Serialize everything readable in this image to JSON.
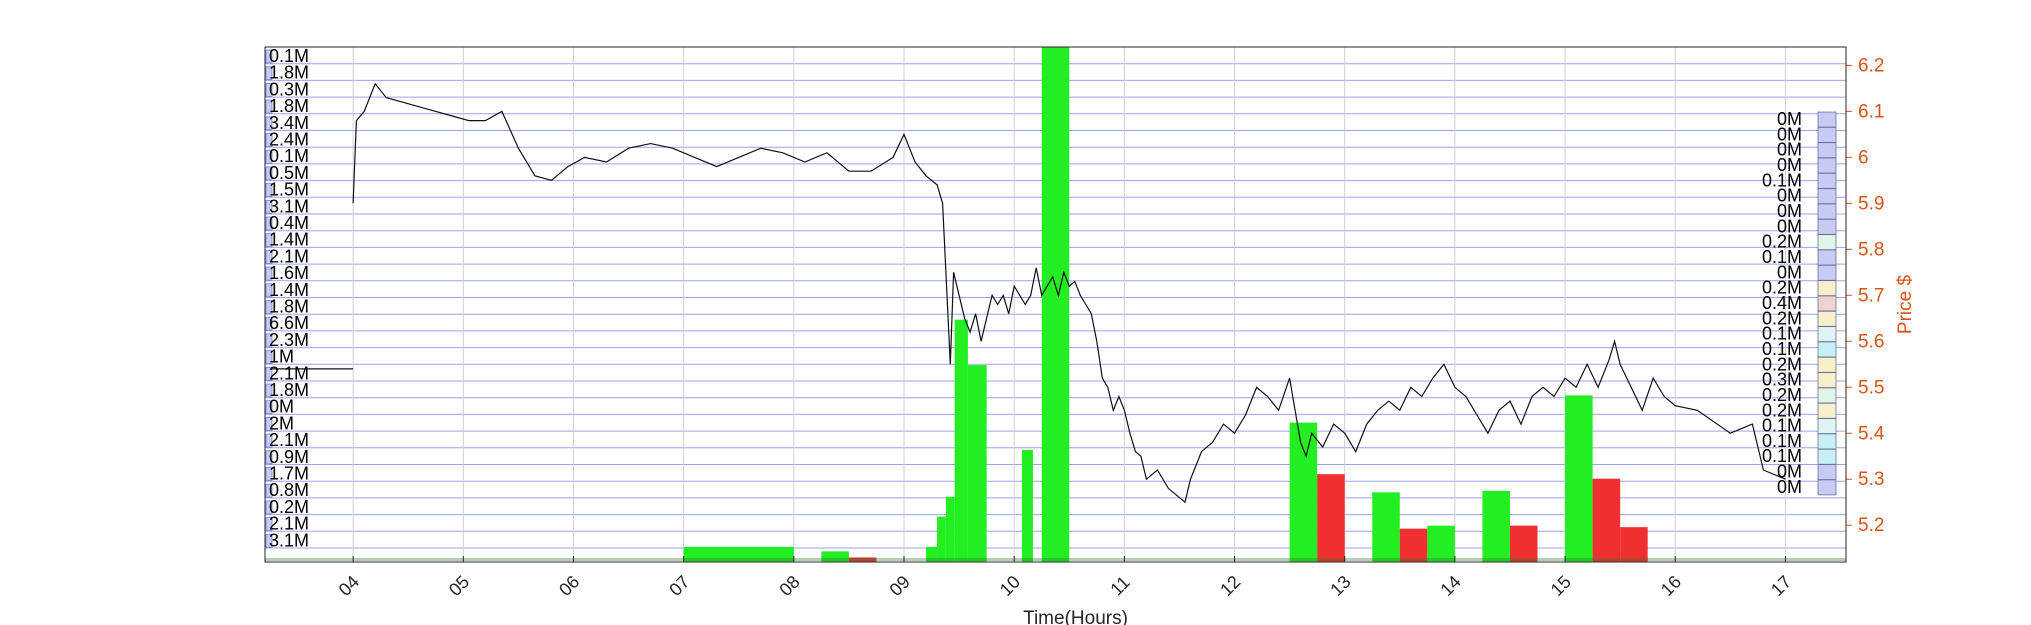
{
  "chart_data": {
    "type": "bar",
    "xlabel": "Time(Hours)",
    "ylabel_right": "Price $",
    "x_ticks": [
      "04",
      "05",
      "06",
      "07",
      "08",
      "09",
      "10",
      "11",
      "12",
      "13",
      "14",
      "15",
      "16",
      "17"
    ],
    "xlim": [
      3.2,
      17.55
    ],
    "ylim_price": [
      5.12,
      6.24
    ],
    "price_ticks": [
      5.2,
      5.3,
      5.4,
      5.5,
      5.6,
      5.7,
      5.8,
      5.9,
      6.0,
      6.1,
      6.2
    ],
    "grid": true,
    "left_volume_labels": [
      "0.1M",
      "1.8M",
      "0.3M",
      "1.8M",
      "3.4M",
      "2.4M",
      "0.1M",
      "0.5M",
      "1.5M",
      "3.1M",
      "0.4M",
      "1.4M",
      "2.1M",
      "1.6M",
      "1.4M",
      "1.8M",
      "6.6M",
      "2.3M",
      "1M",
      "2.1M",
      "1.8M",
      "0M",
      "2M",
      "2.1M",
      "0.9M",
      "1.7M",
      "0.8M",
      "0.2M",
      "2.1M",
      "3.1M"
    ],
    "right_volume_labels": [
      "0M",
      "0M",
      "0M",
      "0M",
      "0.1M",
      "0M",
      "0M",
      "0M",
      "0.2M",
      "0.1M",
      "0M",
      "0.2M",
      "0.4M",
      "0.2M",
      "0.1M",
      "0.1M",
      "0.2M",
      "0.3M",
      "0.2M",
      "0.2M",
      "0.1M",
      "0.1M",
      "0.1M",
      "0M",
      "0M"
    ],
    "volume_bars": [
      {
        "start": 7.0,
        "end": 8.0,
        "volume": 1.0,
        "color": "green"
      },
      {
        "start": 8.25,
        "end": 8.5,
        "volume": 0.7,
        "color": "green"
      },
      {
        "start": 8.5,
        "end": 8.75,
        "volume": 0.3,
        "color": "red"
      },
      {
        "start": 9.2,
        "end": 9.3,
        "volume": 1.0,
        "color": "green"
      },
      {
        "start": 9.3,
        "end": 9.38,
        "volume": 3.0,
        "color": "green"
      },
      {
        "start": 9.38,
        "end": 9.46,
        "volume": 4.3,
        "color": "green"
      },
      {
        "start": 9.46,
        "end": 9.58,
        "volume": 16.0,
        "color": "green"
      },
      {
        "start": 9.58,
        "end": 9.75,
        "volume": 13.0,
        "color": "green"
      },
      {
        "start": 10.07,
        "end": 10.17,
        "volume": 7.4,
        "color": "green"
      },
      {
        "start": 10.25,
        "end": 10.5,
        "volume": 34.0,
        "color": "green"
      },
      {
        "start": 12.5,
        "end": 12.75,
        "volume": 9.2,
        "color": "green"
      },
      {
        "start": 12.75,
        "end": 13.0,
        "volume": 5.8,
        "color": "red"
      },
      {
        "start": 13.25,
        "end": 13.5,
        "volume": 4.6,
        "color": "green"
      },
      {
        "start": 13.5,
        "end": 13.75,
        "volume": 2.2,
        "color": "red"
      },
      {
        "start": 13.75,
        "end": 14.0,
        "volume": 2.4,
        "color": "green"
      },
      {
        "start": 14.25,
        "end": 14.5,
        "volume": 4.7,
        "color": "green"
      },
      {
        "start": 14.5,
        "end": 14.75,
        "volume": 2.4,
        "color": "red"
      },
      {
        "start": 15.0,
        "end": 15.25,
        "volume": 11.0,
        "color": "green"
      },
      {
        "start": 15.25,
        "end": 15.5,
        "volume": 5.5,
        "color": "red"
      },
      {
        "start": 15.5,
        "end": 15.75,
        "volume": 2.3,
        "color": "red"
      }
    ],
    "volume_max": 34.0,
    "price_series": {
      "x": [
        4.0,
        4.03,
        4.1,
        4.2,
        4.3,
        4.45,
        4.6,
        4.75,
        4.9,
        5.05,
        5.2,
        5.35,
        5.5,
        5.6,
        5.65,
        5.8,
        5.95,
        6.1,
        6.3,
        6.5,
        6.7,
        6.9,
        7.1,
        7.3,
        7.5,
        7.7,
        7.9,
        8.1,
        8.3,
        8.5,
        8.7,
        8.9,
        9.0,
        9.1,
        9.2,
        9.3,
        9.35,
        9.38,
        9.42,
        9.45,
        9.5,
        9.55,
        9.6,
        9.65,
        9.7,
        9.75,
        9.8,
        9.85,
        9.9,
        9.95,
        10.0,
        10.05,
        10.1,
        10.15,
        10.2,
        10.25,
        10.3,
        10.35,
        10.4,
        10.45,
        10.5,
        10.55,
        10.6,
        10.65,
        10.7,
        10.75,
        10.8,
        10.85,
        10.9,
        10.95,
        11.0,
        11.05,
        11.1,
        11.15,
        11.2,
        11.3,
        11.4,
        11.5,
        11.55,
        11.6,
        11.7,
        11.8,
        11.9,
        12.0,
        12.1,
        12.2,
        12.3,
        12.4,
        12.5,
        12.55,
        12.6,
        12.65,
        12.7,
        12.8,
        12.9,
        13.0,
        13.1,
        13.2,
        13.3,
        13.4,
        13.5,
        13.6,
        13.7,
        13.8,
        13.9,
        14.0,
        14.1,
        14.2,
        14.3,
        14.4,
        14.5,
        14.6,
        14.7,
        14.8,
        14.9,
        15.0,
        15.1,
        15.2,
        15.3,
        15.4,
        15.45,
        15.5,
        15.6,
        15.7,
        15.8,
        15.9,
        16.0,
        16.2,
        16.5,
        16.7,
        16.8,
        17.0
      ],
      "y": [
        5.9,
        6.08,
        6.1,
        6.16,
        6.13,
        6.12,
        6.11,
        6.1,
        6.09,
        6.08,
        6.08,
        6.1,
        6.02,
        5.98,
        5.96,
        5.95,
        5.98,
        6.0,
        5.99,
        6.02,
        6.03,
        6.02,
        6.0,
        5.98,
        6.0,
        6.02,
        6.01,
        5.99,
        6.01,
        5.97,
        5.97,
        6.0,
        6.05,
        5.99,
        5.96,
        5.94,
        5.9,
        5.75,
        5.55,
        5.75,
        5.7,
        5.65,
        5.62,
        5.66,
        5.6,
        5.65,
        5.7,
        5.68,
        5.7,
        5.66,
        5.72,
        5.7,
        5.68,
        5.7,
        5.76,
        5.7,
        5.72,
        5.74,
        5.7,
        5.75,
        5.72,
        5.73,
        5.7,
        5.68,
        5.66,
        5.6,
        5.52,
        5.5,
        5.45,
        5.48,
        5.45,
        5.4,
        5.36,
        5.35,
        5.3,
        5.32,
        5.28,
        5.26,
        5.25,
        5.3,
        5.36,
        5.38,
        5.42,
        5.4,
        5.44,
        5.5,
        5.48,
        5.45,
        5.52,
        5.45,
        5.38,
        5.35,
        5.4,
        5.37,
        5.42,
        5.4,
        5.36,
        5.42,
        5.45,
        5.47,
        5.45,
        5.5,
        5.48,
        5.52,
        5.55,
        5.5,
        5.48,
        5.44,
        5.4,
        5.45,
        5.47,
        5.42,
        5.48,
        5.5,
        5.48,
        5.52,
        5.5,
        5.55,
        5.5,
        5.56,
        5.6,
        5.55,
        5.5,
        5.45,
        5.52,
        5.48,
        5.46,
        5.45,
        5.4,
        5.42,
        5.32,
        5.3
      ]
    },
    "left_profile_level_price": 5.54
  }
}
